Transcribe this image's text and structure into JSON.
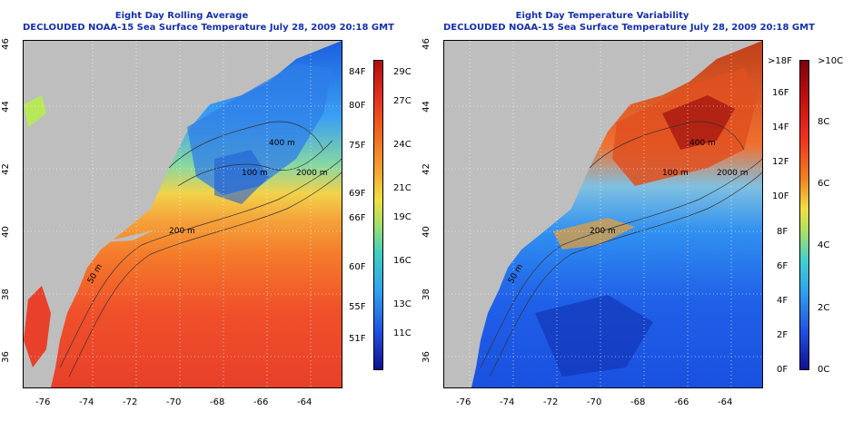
{
  "left_panel": {
    "title_line1": "Eight Day Rolling Average",
    "title_line2": "DECLOUDED NOAA-15 Sea Surface Temperature July 28, 2009 20:18 GMT",
    "colorbar_f": [
      "84F",
      "80F",
      "75F",
      "69F",
      "66F",
      "60F",
      "55F",
      "51F"
    ],
    "colorbar_c": [
      "29C",
      "27C",
      "24C",
      "21C",
      "19C",
      "16C",
      "13C",
      "11C"
    ]
  },
  "right_panel": {
    "title_line1": "Eight Day Temperature Variability",
    "title_line2": "DECLOUDED NOAA-15 Sea Surface Temperature July 28, 2009 20:18 GMT",
    "colorbar_f": [
      ">18F",
      "16F",
      "14F",
      "12F",
      "10F",
      "8F",
      "6F",
      "4F",
      "2F",
      "0F"
    ],
    "colorbar_c": [
      ">10C",
      "8C",
      "6C",
      "4C",
      "2C",
      "0C"
    ]
  },
  "axes": {
    "lat_labels": [
      "46",
      "44",
      "42",
      "40",
      "38",
      "36"
    ],
    "lon_labels": [
      "-76",
      "-74",
      "-72",
      "-70",
      "-68",
      "-66",
      "-64"
    ]
  },
  "contour_labels": [
    "400 m",
    "2000 m",
    "100 m",
    "50 m",
    "200 m"
  ],
  "colors": {
    "land": "#bebebe",
    "title": "#1530b0"
  }
}
